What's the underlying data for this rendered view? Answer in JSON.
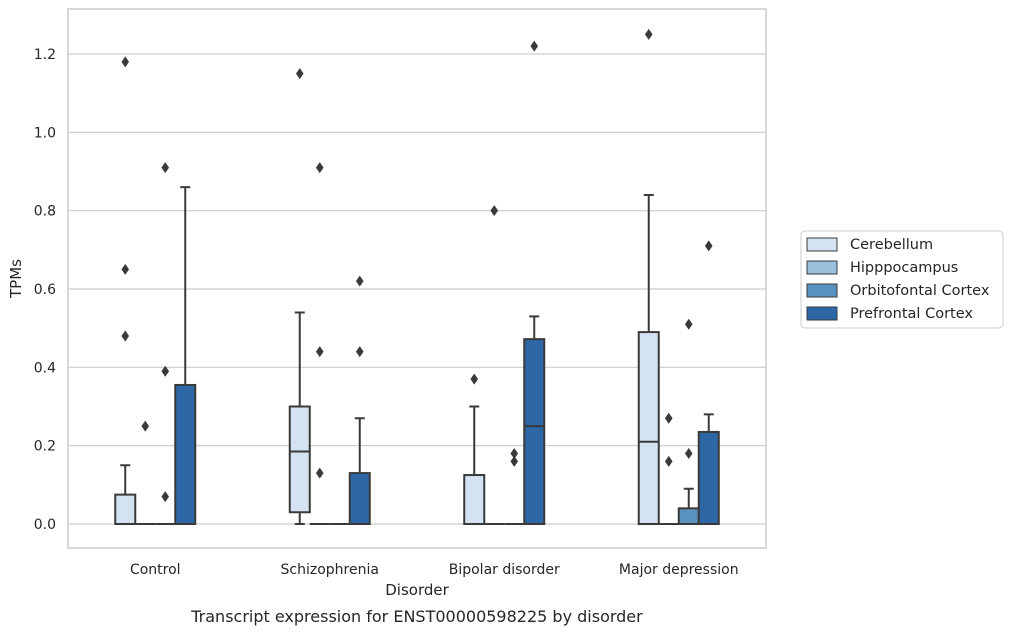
{
  "chart_data": {
    "type": "box",
    "xlabel": "Disorder",
    "ylabel": "TPMs",
    "caption": "Transcript expression for ENST00000598225 by disorder",
    "categories": [
      "Control",
      "Schizophrenia",
      "Bipolar disorder",
      "Major depression"
    ],
    "ylim": [
      -0.06,
      1.32
    ],
    "yticks": [
      "0.0",
      "0.2",
      "0.4",
      "0.6",
      "0.8",
      "1.0",
      "1.2"
    ],
    "ytick_values": [
      0.0,
      0.2,
      0.4,
      0.6,
      0.8,
      1.0,
      1.2
    ],
    "grid": "horizontal",
    "legend_position": "center-right",
    "series": [
      {
        "name": "Cerebellum",
        "color": "#d4e3f2",
        "boxes": [
          {
            "whislo": 0.0,
            "q1": 0.0,
            "med": 0.0,
            "q3": 0.075,
            "whishi": 0.15,
            "fliers": [
              0.48,
              0.65,
              1.18
            ]
          },
          {
            "whislo": 0.0,
            "q1": 0.03,
            "med": 0.185,
            "q3": 0.3,
            "whishi": 0.54,
            "fliers": [
              1.15
            ]
          },
          {
            "whislo": 0.0,
            "q1": 0.0,
            "med": 0.0,
            "q3": 0.125,
            "whishi": 0.3,
            "fliers": [
              0.37
            ]
          },
          {
            "whislo": 0.0,
            "q1": 0.0,
            "med": 0.21,
            "q3": 0.49,
            "whishi": 0.84,
            "fliers": [
              1.25
            ]
          }
        ]
      },
      {
        "name": "Hipppocampus",
        "color": "#9ac0dc",
        "boxes": [
          {
            "whislo": 0.0,
            "q1": 0.0,
            "med": 0.0,
            "q3": 0.0,
            "whishi": 0.0,
            "fliers": [
              0.25
            ]
          },
          {
            "whislo": 0.0,
            "q1": 0.0,
            "med": 0.0,
            "q3": 0.0,
            "whishi": 0.0,
            "fliers": [
              0.13,
              0.44,
              0.91
            ]
          },
          {
            "whislo": 0.0,
            "q1": 0.0,
            "med": 0.0,
            "q3": 0.0,
            "whishi": 0.0,
            "fliers": [
              0.8
            ]
          },
          {
            "whislo": 0.0,
            "q1": 0.0,
            "med": 0.0,
            "q3": 0.0,
            "whishi": 0.0,
            "fliers": [
              0.16,
              0.27
            ]
          }
        ]
      },
      {
        "name": "Orbitofontal Cortex",
        "color": "#5b93c0",
        "boxes": [
          {
            "whislo": 0.0,
            "q1": 0.0,
            "med": 0.0,
            "q3": 0.0,
            "whishi": 0.0,
            "fliers": [
              0.07,
              0.39,
              0.91
            ]
          },
          {
            "whislo": 0.0,
            "q1": 0.0,
            "med": 0.0,
            "q3": 0.0,
            "whishi": 0.0,
            "fliers": []
          },
          {
            "whislo": 0.0,
            "q1": 0.0,
            "med": 0.0,
            "q3": 0.0,
            "whishi": 0.0,
            "fliers": [
              0.16,
              0.18
            ]
          },
          {
            "whislo": 0.0,
            "q1": 0.0,
            "med": 0.0,
            "q3": 0.04,
            "whishi": 0.09,
            "fliers": [
              0.18,
              0.51
            ]
          }
        ]
      },
      {
        "name": "Prefrontal Cortex",
        "color": "#2e67a6",
        "boxes": [
          {
            "whislo": 0.0,
            "q1": 0.0,
            "med": 0.0,
            "q3": 0.355,
            "whishi": 0.86,
            "fliers": []
          },
          {
            "whislo": 0.0,
            "q1": 0.0,
            "med": 0.0,
            "q3": 0.13,
            "whishi": 0.27,
            "fliers": [
              0.44,
              0.62
            ]
          },
          {
            "whislo": 0.0,
            "q1": 0.0,
            "med": 0.25,
            "q3": 0.472,
            "whishi": 0.53,
            "fliers": [
              1.22
            ]
          },
          {
            "whislo": 0.0,
            "q1": 0.0,
            "med": 0.0,
            "q3": 0.235,
            "whishi": 0.28,
            "fliers": [
              0.71
            ]
          }
        ]
      }
    ]
  }
}
